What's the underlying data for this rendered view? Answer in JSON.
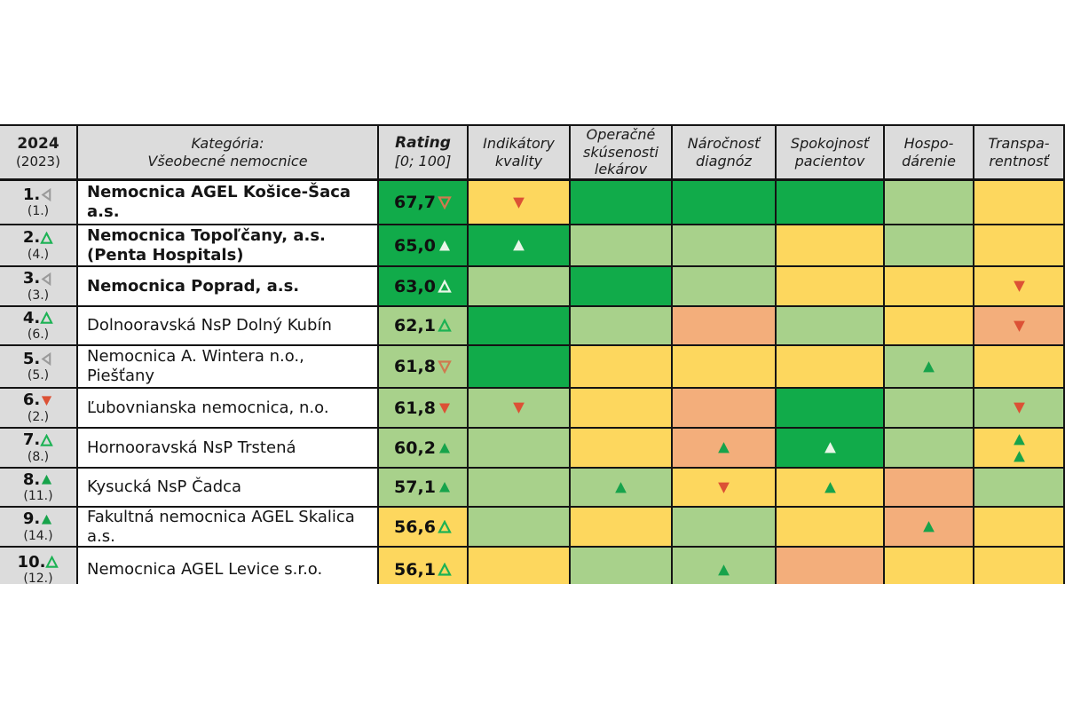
{
  "table": {
    "header": {
      "year": "2024",
      "prev_year": "(2023)",
      "category_line1": "Kategória:",
      "category_line2": "Všeobecné nemocnice",
      "rating_line1": "Rating",
      "rating_line2": "[0; 100]",
      "criteria": [
        [
          "Indikátory",
          "kvality"
        ],
        [
          "Operačné",
          "skúsenosti",
          "lekárov"
        ],
        [
          "Náročnosť",
          "diagnóz"
        ],
        [
          "Spokojnosť",
          "pacientov"
        ],
        [
          "Hospo-",
          "dárenie"
        ],
        [
          "Transpa-",
          "rentnosť"
        ]
      ]
    },
    "rows": [
      {
        "rank": "1.",
        "rank_icon": "left-gray",
        "prev_rank": "(1.)",
        "name": "Nemocnica AGEL Košice-Šaca a.s.",
        "bold": true,
        "rating": "67,7",
        "rating_icon": "down-outline-orange",
        "rating_bg": "dark_green",
        "cells": [
          {
            "bg": "yellow",
            "icons": [
              "down-red"
            ]
          },
          {
            "bg": "dark_green",
            "icons": []
          },
          {
            "bg": "dark_green",
            "icons": []
          },
          {
            "bg": "dark_green",
            "icons": []
          },
          {
            "bg": "light_green",
            "icons": []
          },
          {
            "bg": "yellow",
            "icons": []
          }
        ]
      },
      {
        "rank": "2.",
        "rank_icon": "up-outline-green",
        "prev_rank": "(4.)",
        "name": "Nemocnica Topoľčany, a.s. (Penta Hospitals)",
        "bold": true,
        "rating": "65,0",
        "rating_icon": "up-white",
        "rating_bg": "dark_green",
        "cells": [
          {
            "bg": "dark_green",
            "icons": [
              "up-white"
            ]
          },
          {
            "bg": "light_green",
            "icons": []
          },
          {
            "bg": "light_green",
            "icons": []
          },
          {
            "bg": "yellow",
            "icons": []
          },
          {
            "bg": "light_green",
            "icons": []
          },
          {
            "bg": "yellow",
            "icons": []
          }
        ]
      },
      {
        "rank": "3.",
        "rank_icon": "left-gray",
        "prev_rank": "(3.)",
        "name": "Nemocnica Poprad, a.s.",
        "bold": true,
        "rating": "63,0",
        "rating_icon": "up-outline-white",
        "rating_bg": "dark_green",
        "cells": [
          {
            "bg": "light_green",
            "icons": []
          },
          {
            "bg": "dark_green",
            "icons": []
          },
          {
            "bg": "light_green",
            "icons": []
          },
          {
            "bg": "yellow",
            "icons": []
          },
          {
            "bg": "yellow",
            "icons": []
          },
          {
            "bg": "yellow",
            "icons": [
              "down-red"
            ]
          }
        ]
      },
      {
        "rank": "4.",
        "rank_icon": "up-outline-green",
        "prev_rank": "(6.)",
        "name": "Dolnooravská NsP Dolný Kubín",
        "bold": false,
        "rating": "62,1",
        "rating_icon": "up-outline-green",
        "rating_bg": "light_green",
        "cells": [
          {
            "bg": "dark_green",
            "icons": []
          },
          {
            "bg": "light_green",
            "icons": []
          },
          {
            "bg": "salmon",
            "icons": []
          },
          {
            "bg": "light_green",
            "icons": []
          },
          {
            "bg": "yellow",
            "icons": []
          },
          {
            "bg": "salmon",
            "icons": [
              "down-red"
            ]
          }
        ]
      },
      {
        "rank": "5.",
        "rank_icon": "left-gray",
        "prev_rank": "(5.)",
        "name": "Nemocnica A. Wintera n.o., Piešťany",
        "bold": false,
        "rating": "61,8",
        "rating_icon": "down-outline-orange",
        "rating_bg": "light_green",
        "cells": [
          {
            "bg": "dark_green",
            "icons": []
          },
          {
            "bg": "yellow",
            "icons": []
          },
          {
            "bg": "yellow",
            "icons": []
          },
          {
            "bg": "yellow",
            "icons": []
          },
          {
            "bg": "light_green",
            "icons": [
              "up-green"
            ]
          },
          {
            "bg": "yellow",
            "icons": []
          }
        ]
      },
      {
        "rank": "6.",
        "rank_icon": "down-red",
        "prev_rank": "(2.)",
        "name": "Ľubovnianska nemocnica, n.o.",
        "bold": false,
        "rating": "61,8",
        "rating_icon": "down-red",
        "rating_bg": "light_green",
        "cells": [
          {
            "bg": "light_green",
            "icons": [
              "down-red"
            ]
          },
          {
            "bg": "yellow",
            "icons": []
          },
          {
            "bg": "salmon",
            "icons": []
          },
          {
            "bg": "dark_green",
            "icons": []
          },
          {
            "bg": "light_green",
            "icons": []
          },
          {
            "bg": "light_green",
            "icons": [
              "down-red"
            ]
          }
        ]
      },
      {
        "rank": "7.",
        "rank_icon": "up-outline-green",
        "prev_rank": "(8.)",
        "name": "Hornooravská NsP Trstená",
        "bold": false,
        "rating": "60,2",
        "rating_icon": "up-green",
        "rating_bg": "light_green",
        "cells": [
          {
            "bg": "light_green",
            "icons": []
          },
          {
            "bg": "yellow",
            "icons": []
          },
          {
            "bg": "salmon",
            "icons": [
              "up-green"
            ]
          },
          {
            "bg": "dark_green",
            "icons": [
              "up-white"
            ]
          },
          {
            "bg": "light_green",
            "icons": []
          },
          {
            "bg": "yellow",
            "icons": [
              "up-green",
              "up-green"
            ]
          }
        ]
      },
      {
        "rank": "8.",
        "rank_icon": "up-green",
        "prev_rank": "(11.)",
        "name": "Kysucká NsP Čadca",
        "bold": false,
        "rating": "57,1",
        "rating_icon": "up-green",
        "rating_bg": "light_green",
        "cells": [
          {
            "bg": "light_green",
            "icons": []
          },
          {
            "bg": "light_green",
            "icons": [
              "up-green"
            ]
          },
          {
            "bg": "yellow",
            "icons": [
              "down-red"
            ]
          },
          {
            "bg": "yellow",
            "icons": [
              "up-green"
            ]
          },
          {
            "bg": "salmon",
            "icons": []
          },
          {
            "bg": "light_green",
            "icons": []
          }
        ]
      },
      {
        "rank": "9.",
        "rank_icon": "up-green",
        "prev_rank": "(14.)",
        "name": "Fakultná nemocnica AGEL Skalica a.s.",
        "bold": false,
        "rating": "56,6",
        "rating_icon": "up-outline-green",
        "rating_bg": "yellow",
        "cells": [
          {
            "bg": "light_green",
            "icons": []
          },
          {
            "bg": "yellow",
            "icons": []
          },
          {
            "bg": "light_green",
            "icons": []
          },
          {
            "bg": "yellow",
            "icons": []
          },
          {
            "bg": "salmon",
            "icons": [
              "up-green"
            ]
          },
          {
            "bg": "yellow",
            "icons": []
          }
        ]
      },
      {
        "rank": "10.",
        "rank_icon": "up-outline-green",
        "prev_rank": "(12.)",
        "name": "Nemocnica AGEL Levice s.r.o.",
        "bold": false,
        "rating": "56,1",
        "rating_icon": "up-outline-green",
        "rating_bg": "yellow",
        "cells": [
          {
            "bg": "yellow",
            "icons": []
          },
          {
            "bg": "light_green",
            "icons": []
          },
          {
            "bg": "light_green",
            "icons": [
              "up-green"
            ]
          },
          {
            "bg": "salmon",
            "icons": []
          },
          {
            "bg": "yellow",
            "icons": []
          },
          {
            "bg": "yellow",
            "icons": []
          }
        ]
      }
    ]
  },
  "colors": {
    "dark_green": "#11ab4a",
    "light_green": "#a8d18b",
    "yellow": "#fdd75e",
    "salmon": "#f3ae7b",
    "header_bg": "#dcdcdc",
    "border": "#141414"
  },
  "icon_styles": {
    "up-green": {
      "shape": "up",
      "fill": "#17a34b"
    },
    "up-white": {
      "shape": "up",
      "fill": "#e9f6e8"
    },
    "up-outline-green": {
      "shape": "up",
      "stroke": "#1cb254"
    },
    "up-outline-white": {
      "shape": "up",
      "stroke": "#e9f6e8"
    },
    "down-red": {
      "shape": "down",
      "fill": "#dc5135"
    },
    "down-outline-orange": {
      "shape": "down",
      "stroke": "#cf7a4f"
    },
    "left-gray": {
      "shape": "left",
      "stroke": "#9a9a9a"
    }
  }
}
